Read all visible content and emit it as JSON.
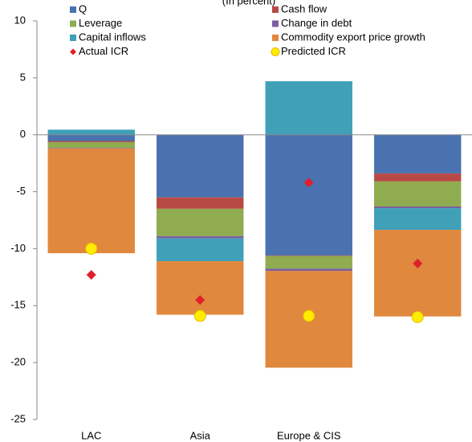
{
  "chart_data": {
    "type": "stacked_bar",
    "title": "(In percent)",
    "categories": [
      "LAC",
      "Asia",
      "Europe  & CIS",
      null
    ],
    "series": [
      {
        "name": "Q",
        "color": "#4a72b0",
        "values": [
          -0.55,
          -5.5,
          -10.6,
          -3.4
        ]
      },
      {
        "name": "Cash flow",
        "color": "#b84a45",
        "values": [
          -0.1,
          -1.0,
          -0.05,
          -0.7
        ]
      },
      {
        "name": "Leverage",
        "color": "#8fac50",
        "values": [
          -0.5,
          -2.4,
          -1.1,
          -2.2
        ]
      },
      {
        "name": "Change in debt",
        "color": "#7b5fa0",
        "values": [
          -0.05,
          -0.2,
          -0.2,
          -0.15
        ]
      },
      {
        "name": "Capital inflows",
        "color": "#3fa0b8",
        "values": [
          0.45,
          -2.0,
          4.7,
          -1.9
        ]
      },
      {
        "name": "Commodity export price growth",
        "color": "#e0883e",
        "values": [
          -9.2,
          -4.7,
          -8.5,
          -7.6
        ]
      }
    ],
    "markers": [
      {
        "name": "Actual ICR",
        "color": "#e0202a",
        "shape": "diamond",
        "values": [
          -12.3,
          -14.5,
          -4.2,
          -11.3
        ]
      },
      {
        "name": "Predicted ICR",
        "color": "#ffec00",
        "shape": "circle",
        "values": [
          -10.0,
          -15.9,
          -15.9,
          -16.0
        ]
      }
    ],
    "ylim": [
      -25,
      10
    ],
    "yticks": [
      -25,
      -20,
      -15,
      -10,
      -5,
      0,
      5,
      10
    ]
  }
}
